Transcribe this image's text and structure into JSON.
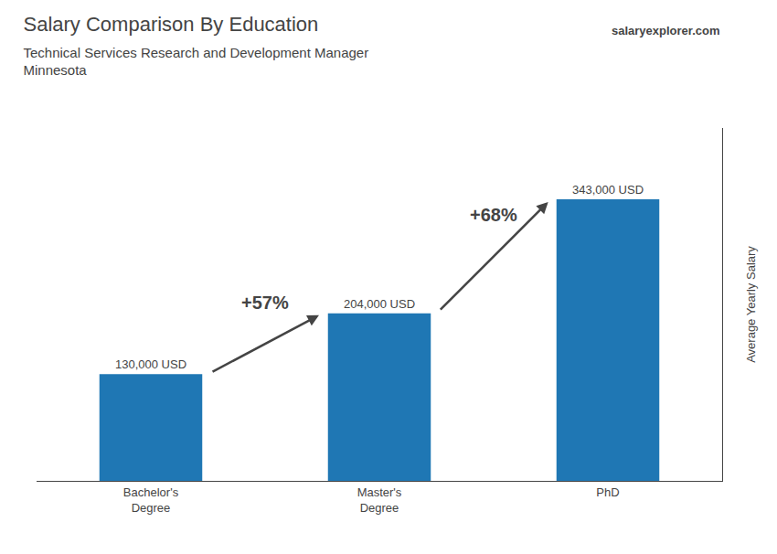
{
  "chart_data": {
    "type": "bar",
    "title": "Salary Comparison By Education",
    "subtitle": [
      "Technical Services Research and Development Manager",
      "Minnesota"
    ],
    "watermark": "salaryexplorer.com",
    "ylabel": "Average Yearly Salary",
    "categories": [
      "Bachelor's\nDegree",
      "Master's\nDegree",
      "PhD"
    ],
    "values": [
      130000,
      204000,
      343000
    ],
    "value_labels": [
      "130,000 USD",
      "204,000 USD",
      "343,000 USD"
    ],
    "data_labels": true,
    "annotations": [
      "+57%",
      "+68%"
    ],
    "ylim": [
      0,
      430000
    ],
    "yticks": [],
    "tick_labels": "x",
    "grid": false
  }
}
